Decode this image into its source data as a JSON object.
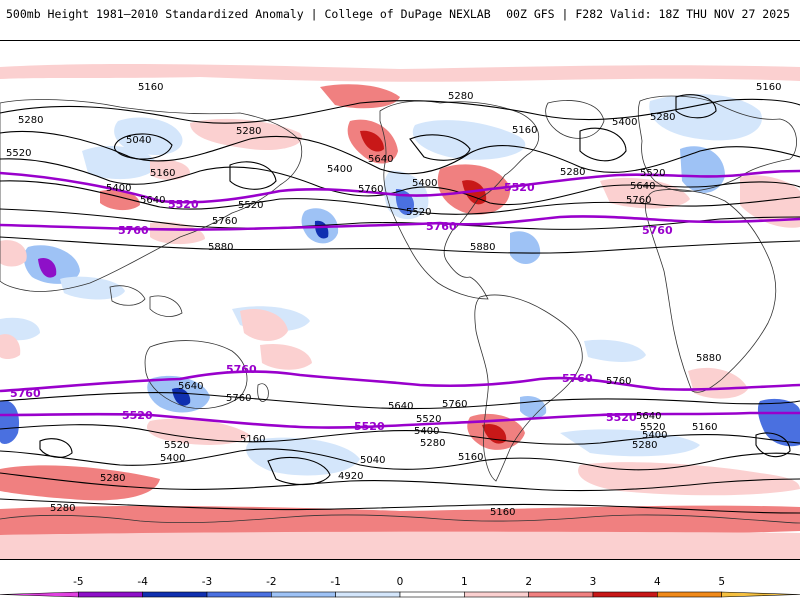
{
  "header": {
    "title": "500mb Height 1981–2010 Standardized Anomaly | College of DuPage NEXLAB",
    "run_info": "00Z GFS | F282 Valid: 18Z THU NOV 27 2025"
  },
  "colors": {
    "ocean": "#ffffff",
    "contour": "#000000",
    "reference_contour": "#9900cc",
    "coastline": "#333333"
  },
  "colorbar": {
    "ticks": [
      "-5",
      "-4",
      "-3",
      "-2",
      "-1",
      "0",
      "1",
      "2",
      "3",
      "4",
      "5"
    ],
    "bins": [
      {
        "value": -5.5,
        "color": "#e040e0"
      },
      {
        "value": -4.5,
        "color": "#8e10c8"
      },
      {
        "value": -3.5,
        "color": "#1030b0"
      },
      {
        "value": -2.5,
        "color": "#4a70e0"
      },
      {
        "value": -1.5,
        "color": "#9ec2f5"
      },
      {
        "value": -0.5,
        "color": "#d4e6fb"
      },
      {
        "value": 0.5,
        "color": "#ffffff"
      },
      {
        "value": 1.5,
        "color": "#fbd0d0"
      },
      {
        "value": 2.5,
        "color": "#f08080"
      },
      {
        "value": 3.5,
        "color": "#c81818"
      },
      {
        "value": 4.5,
        "color": "#f08a1a"
      },
      {
        "value": 5.5,
        "color": "#f5c040"
      }
    ]
  },
  "contour_labels": [
    "5160",
    "5280",
    "5040",
    "5520",
    "5400",
    "5640",
    "5760",
    "5880",
    "4920"
  ],
  "reference_labels": [
    "5520",
    "5760"
  ]
}
